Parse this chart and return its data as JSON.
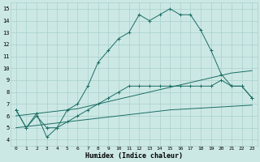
{
  "xlabel": "Humidex (Indice chaleur)",
  "x_ticks": [
    0,
    1,
    2,
    3,
    4,
    5,
    6,
    7,
    8,
    9,
    10,
    11,
    12,
    13,
    14,
    15,
    16,
    17,
    18,
    19,
    20,
    21,
    22,
    23
  ],
  "xlim": [
    -0.5,
    23.5
  ],
  "ylim": [
    3.5,
    15.5
  ],
  "y_ticks": [
    4,
    5,
    6,
    7,
    8,
    9,
    10,
    11,
    12,
    13,
    14,
    15
  ],
  "bg_color": "#cce8e5",
  "grid_color": "#a8d0cc",
  "line_color": "#1a6e64",
  "main_series": [
    6.5,
    5.0,
    6.2,
    4.2,
    5.0,
    6.5,
    7.0,
    8.5,
    10.5,
    11.5,
    12.5,
    13.0,
    14.5,
    14.0,
    14.5,
    15.0,
    14.5,
    14.5,
    13.2,
    11.5,
    9.5,
    8.5,
    8.5,
    7.5
  ],
  "mid_series": [
    6.5,
    5.0,
    6.0,
    5.0,
    5.0,
    5.5,
    6.0,
    6.5,
    7.0,
    7.5,
    8.0,
    8.5,
    8.5,
    8.5,
    8.5,
    8.5,
    8.5,
    8.5,
    8.5,
    8.5,
    9.0,
    8.5,
    8.5,
    7.5
  ],
  "trend_upper": [
    6.0,
    6.1,
    6.2,
    6.3,
    6.4,
    6.5,
    6.6,
    6.8,
    7.0,
    7.2,
    7.4,
    7.6,
    7.8,
    8.0,
    8.2,
    8.4,
    8.6,
    8.8,
    9.0,
    9.2,
    9.4,
    9.6,
    9.7,
    9.8
  ],
  "trend_lower": [
    5.0,
    5.1,
    5.2,
    5.3,
    5.4,
    5.5,
    5.6,
    5.7,
    5.8,
    5.9,
    6.0,
    6.1,
    6.2,
    6.3,
    6.4,
    6.5,
    6.55,
    6.6,
    6.65,
    6.7,
    6.75,
    6.8,
    6.85,
    6.9
  ]
}
